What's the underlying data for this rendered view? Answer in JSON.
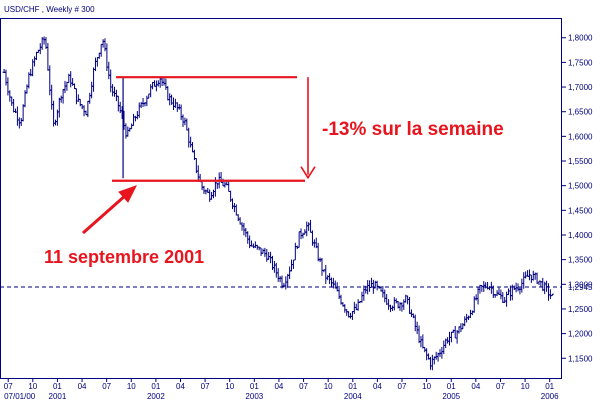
{
  "chart_data": {
    "type": "line",
    "title": "USD/CHF , Weekly # 300",
    "xlabel": "",
    "ylabel": "",
    "ylim": [
      1.11,
      1.84
    ],
    "reference_line": {
      "y": 1.2945,
      "label": "1,2945",
      "style": "dashed"
    },
    "y_ticks": [
      {
        "value": 1.8,
        "label": "1,8000"
      },
      {
        "value": 1.75,
        "label": "1,7500"
      },
      {
        "value": 1.7,
        "label": "1,7000"
      },
      {
        "value": 1.65,
        "label": "1,6500"
      },
      {
        "value": 1.6,
        "label": "1,6000"
      },
      {
        "value": 1.55,
        "label": "1,5500"
      },
      {
        "value": 1.5,
        "label": "1,5000"
      },
      {
        "value": 1.45,
        "label": "1,4500"
      },
      {
        "value": 1.4,
        "label": "1,4000"
      },
      {
        "value": 1.35,
        "label": "1,3500"
      },
      {
        "value": 1.3,
        "label": "1,3000"
      },
      {
        "value": 1.25,
        "label": "1,2500"
      },
      {
        "value": 1.2,
        "label": "1,2000"
      },
      {
        "value": 1.15,
        "label": "1,1500"
      }
    ],
    "x_ticks": [
      {
        "t": 0.5,
        "label": "07"
      },
      {
        "t": 3.5,
        "label": "10"
      },
      {
        "t": 6.5,
        "label": "01"
      },
      {
        "t": 9.5,
        "label": "04"
      },
      {
        "t": 12.5,
        "label": "07"
      },
      {
        "t": 15.5,
        "label": "10"
      },
      {
        "t": 18.5,
        "label": "01"
      },
      {
        "t": 21.5,
        "label": "04"
      },
      {
        "t": 24.5,
        "label": "07"
      },
      {
        "t": 27.5,
        "label": "10"
      },
      {
        "t": 30.5,
        "label": "01"
      },
      {
        "t": 33.5,
        "label": "04"
      },
      {
        "t": 36.5,
        "label": "07"
      },
      {
        "t": 39.5,
        "label": "10"
      },
      {
        "t": 42.5,
        "label": "01"
      },
      {
        "t": 45.5,
        "label": "04"
      },
      {
        "t": 48.5,
        "label": "07"
      },
      {
        "t": 51.5,
        "label": "10"
      },
      {
        "t": 54.5,
        "label": "01"
      },
      {
        "t": 57.5,
        "label": "04"
      },
      {
        "t": 60.5,
        "label": "07"
      },
      {
        "t": 63.5,
        "label": "10"
      },
      {
        "t": 66.5,
        "label": "01"
      }
    ],
    "year_labels": [
      {
        "t": 0.0,
        "label": "07/01/00"
      },
      {
        "t": 6.5,
        "label": "2001"
      },
      {
        "t": 18.5,
        "label": "2002"
      },
      {
        "t": 30.5,
        "label": "2003"
      },
      {
        "t": 42.5,
        "label": "2004"
      },
      {
        "t": 54.5,
        "label": "2005"
      },
      {
        "t": 66.5,
        "label": "2006"
      }
    ],
    "t_range": [
      -0.5,
      68
    ],
    "series": [
      {
        "months": [
          0,
          1,
          2,
          3,
          4,
          5,
          6,
          7,
          8,
          9,
          10,
          11,
          12,
          13,
          14,
          15,
          16,
          17,
          18,
          19,
          20,
          21,
          22,
          23,
          24,
          25,
          26,
          27,
          28,
          29,
          30,
          31,
          32,
          33,
          34,
          35,
          36,
          37,
          38,
          39,
          40,
          41,
          42,
          43,
          44,
          45,
          46,
          47,
          48,
          49,
          50,
          51,
          52,
          53,
          54,
          55,
          56,
          57,
          58,
          59,
          60,
          61,
          62,
          63,
          64,
          65,
          66,
          67
        ],
        "values": [
          1.73,
          1.66,
          1.63,
          1.72,
          1.77,
          1.8,
          1.62,
          1.69,
          1.72,
          1.67,
          1.65,
          1.74,
          1.8,
          1.7,
          1.66,
          1.6,
          1.64,
          1.67,
          1.7,
          1.72,
          1.68,
          1.66,
          1.63,
          1.56,
          1.5,
          1.48,
          1.51,
          1.5,
          1.46,
          1.42,
          1.38,
          1.37,
          1.36,
          1.33,
          1.3,
          1.34,
          1.4,
          1.42,
          1.37,
          1.32,
          1.3,
          1.27,
          1.24,
          1.25,
          1.29,
          1.3,
          1.28,
          1.26,
          1.26,
          1.27,
          1.22,
          1.17,
          1.14,
          1.16,
          1.19,
          1.2,
          1.22,
          1.25,
          1.29,
          1.3,
          1.28,
          1.27,
          1.29,
          1.3,
          1.32,
          1.31,
          1.29,
          1.27
        ]
      }
    ]
  },
  "annotations": {
    "drop_label": "-13% sur la semaine",
    "event_label": "11 septembre 2001",
    "upper_level": 1.72,
    "lower_level": 1.51
  },
  "colors": {
    "axis": "#000080",
    "series": "#000080",
    "annotation": "#e8141e",
    "reference": "#000080"
  }
}
